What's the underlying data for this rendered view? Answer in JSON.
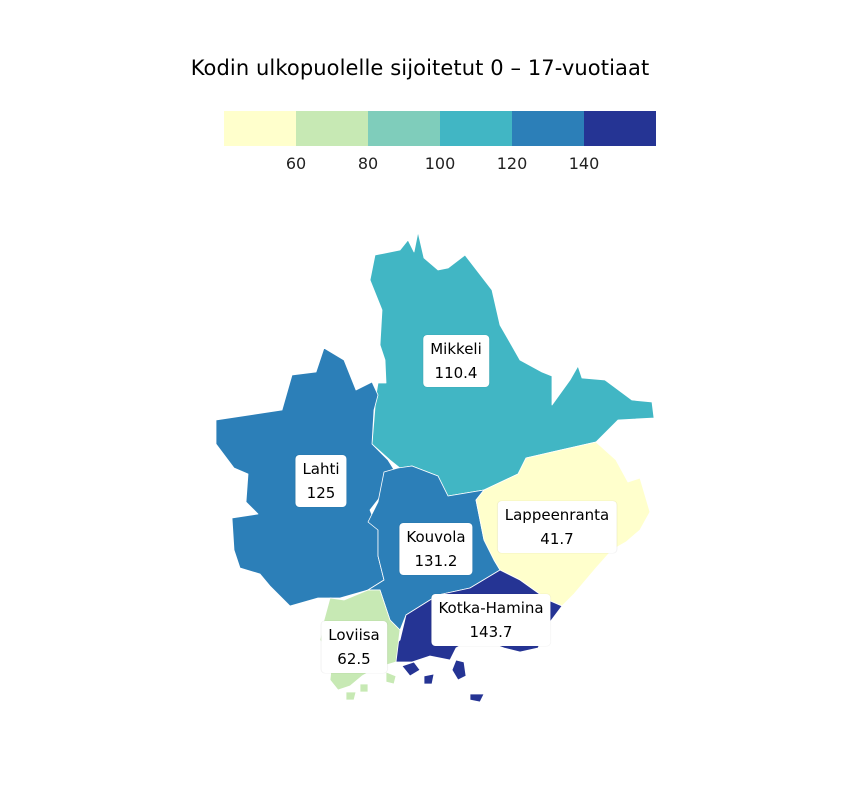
{
  "title": "Kodin ulkopuolelle sijoitetut 0 – 17-vuotiaat",
  "legend": {
    "colors": [
      "#ffffcc",
      "#c7e9b4",
      "#7fcdbb",
      "#41b6c4",
      "#2c7fb8",
      "#253494"
    ],
    "ticks": [
      "60",
      "80",
      "100",
      "120",
      "140"
    ]
  },
  "regions": [
    {
      "name": "Mikkeli",
      "value": "110.4",
      "color": "#41b6c4"
    },
    {
      "name": "Lahti",
      "value": "125",
      "color": "#2c7fb8"
    },
    {
      "name": "Kouvola",
      "value": "131.2",
      "color": "#2c7fb8"
    },
    {
      "name": "Lappeenranta",
      "value": "41.7",
      "color": "#ffffcc"
    },
    {
      "name": "Kotka-Hamina",
      "value": "143.7",
      "color": "#253494"
    },
    {
      "name": "Loviisa",
      "value": "62.5",
      "color": "#c7e9b4"
    }
  ]
}
